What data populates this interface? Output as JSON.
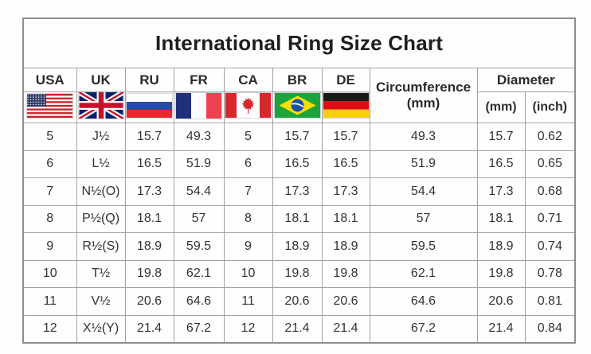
{
  "title": "International Ring Size Chart",
  "header": {
    "countries": [
      {
        "label": "USA",
        "flag": "usa-flag-icon"
      },
      {
        "label": "UK",
        "flag": "uk-flag-icon"
      },
      {
        "label": "RU",
        "flag": "russia-flag-icon"
      },
      {
        "label": "FR",
        "flag": "france-flag-icon"
      },
      {
        "label": "CA",
        "flag": "canada-flag-icon"
      },
      {
        "label": "BR",
        "flag": "brazil-flag-icon"
      },
      {
        "label": "DE",
        "flag": "germany-flag-icon"
      }
    ],
    "circumference": {
      "line1": "Circumference",
      "line2": "(mm)"
    },
    "diameter": {
      "label": "Diameter",
      "subcolumns": [
        "(mm)",
        "(inch)"
      ]
    }
  },
  "colors": {
    "table_border": "#8e8e8e",
    "cell_border": "#a2a2a2",
    "text": "#2e2e2e",
    "background": "#fefefe"
  },
  "chart_data": {
    "type": "table",
    "title": "International Ring Size Chart",
    "columns": [
      "USA",
      "UK",
      "RU",
      "FR",
      "CA",
      "BR",
      "DE",
      "Circumference (mm)",
      "Diameter (mm)",
      "Diameter (inch)"
    ],
    "rows": [
      [
        "5",
        "J½",
        "15.7",
        "49.3",
        "5",
        "15.7",
        "15.7",
        "49.3",
        "15.7",
        "0.62"
      ],
      [
        "6",
        "L½",
        "16.5",
        "51.9",
        "6",
        "16.5",
        "16.5",
        "51.9",
        "16.5",
        "0.65"
      ],
      [
        "7",
        "N½(O)",
        "17.3",
        "54.4",
        "7",
        "17.3",
        "17.3",
        "54.4",
        "17.3",
        "0.68"
      ],
      [
        "8",
        "P½(Q)",
        "18.1",
        "57",
        "8",
        "18.1",
        "18.1",
        "57",
        "18.1",
        "0.71"
      ],
      [
        "9",
        "R½(S)",
        "18.9",
        "59.5",
        "9",
        "18.9",
        "18.9",
        "59.5",
        "18.9",
        "0.74"
      ],
      [
        "10",
        "T½",
        "19.8",
        "62.1",
        "10",
        "19.8",
        "19.8",
        "62.1",
        "19.8",
        "0.78"
      ],
      [
        "11",
        "V½",
        "20.6",
        "64.6",
        "11",
        "20.6",
        "20.6",
        "64.6",
        "20.6",
        "0.81"
      ],
      [
        "12",
        "X½(Y)",
        "21.4",
        "67.2",
        "12",
        "21.4",
        "21.4",
        "67.2",
        "21.4",
        "0.84"
      ]
    ]
  }
}
